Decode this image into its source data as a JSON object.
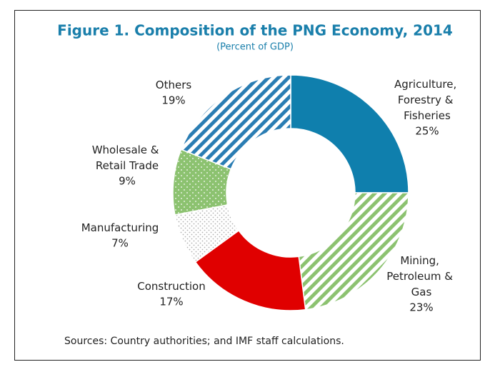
{
  "chart_data": {
    "type": "donut",
    "title": "Figure 1. Composition of the PNG Economy, 2014",
    "subtitle": "(Percent of GDP)",
    "categories": [
      "Agriculture, Forestry & Fisheries",
      "Mining, Petroleum & Gas",
      "Construction",
      "Manufacturing",
      "Wholesale & Retail Trade",
      "Others"
    ],
    "values": [
      25,
      23,
      17,
      7,
      9,
      19
    ],
    "value_labels": [
      "25%",
      "23%",
      "17%",
      "7%",
      "9%",
      "19%"
    ],
    "colors": [
      "#0f7fad",
      "#8cc270",
      "#e00000",
      "#b0b0b0",
      "#8cc270",
      "#2a7db3"
    ],
    "patterns": [
      "solid",
      "stripes",
      "solid",
      "dots",
      "dots-on-color",
      "stripes"
    ],
    "source": "Sources: Country authorities; and IMF staff calculations."
  }
}
